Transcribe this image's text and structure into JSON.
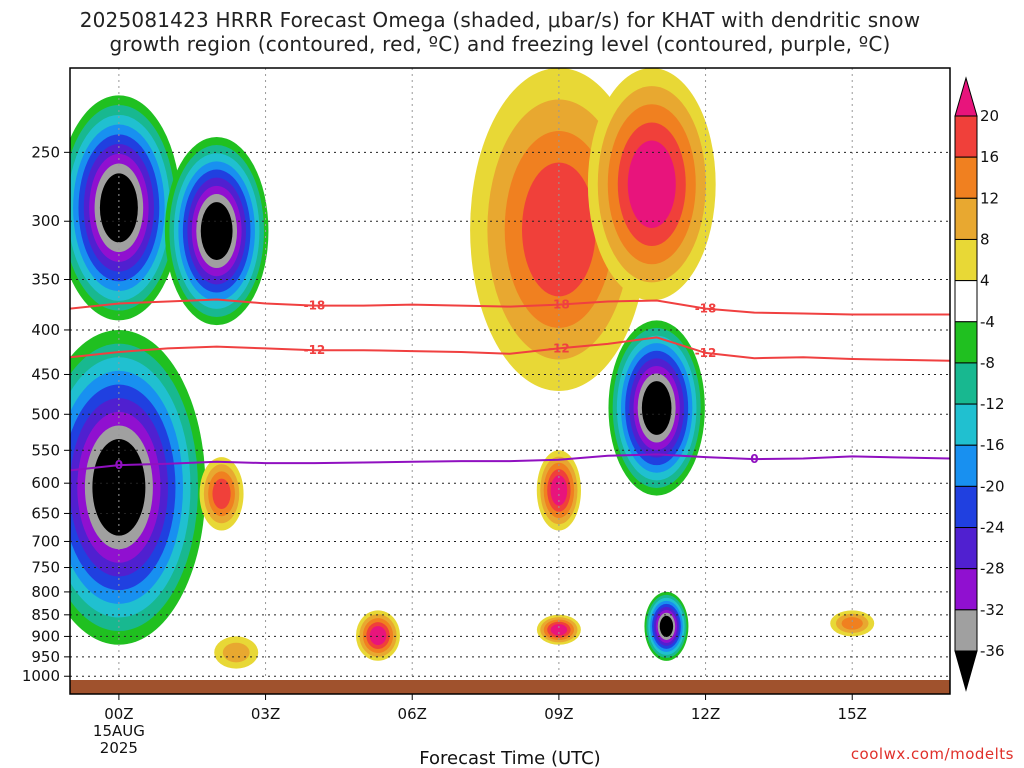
{
  "title": {
    "line1": "2025081423 HRRR Forecast Omega (shaded, μbar/s) for KHAT with dendritic snow",
    "line2": "growth region (contoured, red, ºC) and freezing level (contoured, purple, ºC)"
  },
  "credit": "coolwx.com/modelts",
  "chart_data": {
    "type": "heatmap",
    "xlabel": "Forecast Time (UTC)",
    "ylabel": "",
    "x_ticks": [
      {
        "hour": 0,
        "label": "00Z",
        "sublabels": [
          "15AUG",
          "2025"
        ]
      },
      {
        "hour": 3,
        "label": "03Z",
        "sublabels": []
      },
      {
        "hour": 6,
        "label": "06Z",
        "sublabels": []
      },
      {
        "hour": 9,
        "label": "09Z",
        "sublabels": []
      },
      {
        "hour": 12,
        "label": "12Z",
        "sublabels": []
      },
      {
        "hour": 15,
        "label": "15Z",
        "sublabels": []
      }
    ],
    "xlim_hours": [
      -1,
      17
    ],
    "y_ticks": [
      250,
      300,
      350,
      400,
      450,
      500,
      550,
      600,
      650,
      700,
      750,
      800,
      850,
      900,
      950,
      1000
    ],
    "ylim_mb": [
      200,
      1010
    ],
    "y_scale": "log-pressure",
    "grid": true,
    "colorbar": {
      "unit": "μbar/s",
      "labels": [
        "20",
        "16",
        "12",
        "8",
        "4",
        "-4",
        "-8",
        "-12",
        "-16",
        "-20",
        "-24",
        "-28",
        "-32",
        "-36"
      ],
      "colors": [
        "#e8147c",
        "#f0403a",
        "#f08020",
        "#e8a830",
        "#e8d836",
        "#ffffff",
        "#20c020",
        "#18b890",
        "#20c0d0",
        "#1890f0",
        "#2040e0",
        "#5020d0",
        "#9010d0",
        "#a0a0a0",
        "#000000"
      ]
    },
    "contours": [
      {
        "name": "-18",
        "color": "#f04040",
        "points": [
          [
            -1,
            378
          ],
          [
            0,
            373
          ],
          [
            1,
            371
          ],
          [
            2,
            369
          ],
          [
            3,
            373
          ],
          [
            4,
            375
          ],
          [
            5,
            375
          ],
          [
            6,
            374
          ],
          [
            7,
            375
          ],
          [
            8,
            376
          ],
          [
            9,
            374
          ],
          [
            10,
            371
          ],
          [
            11,
            370
          ],
          [
            12,
            378
          ],
          [
            13,
            382
          ],
          [
            14,
            383
          ],
          [
            15,
            384
          ],
          [
            17,
            384
          ]
        ]
      },
      {
        "name": "-12",
        "color": "#f04040",
        "points": [
          [
            -1,
            430
          ],
          [
            0,
            424
          ],
          [
            1,
            420
          ],
          [
            2,
            418
          ],
          [
            3,
            420
          ],
          [
            4,
            422
          ],
          [
            5,
            422
          ],
          [
            6,
            423
          ],
          [
            7,
            424
          ],
          [
            8,
            426
          ],
          [
            9,
            420
          ],
          [
            10,
            415
          ],
          [
            11,
            408
          ],
          [
            12,
            425
          ],
          [
            13,
            431
          ],
          [
            14,
            430
          ],
          [
            15,
            432
          ],
          [
            17,
            434
          ]
        ]
      },
      {
        "name": "0",
        "color": "#9010c0",
        "points": [
          [
            -1,
            580
          ],
          [
            0,
            572
          ],
          [
            1,
            570
          ],
          [
            2,
            567
          ],
          [
            3,
            569
          ],
          [
            4,
            569
          ],
          [
            5,
            568
          ],
          [
            6,
            567
          ],
          [
            7,
            566
          ],
          [
            8,
            566
          ],
          [
            9,
            564
          ],
          [
            10,
            558
          ],
          [
            11,
            556
          ],
          [
            12,
            560
          ],
          [
            13,
            563
          ],
          [
            14,
            562
          ],
          [
            15,
            559
          ],
          [
            17,
            562
          ]
        ]
      }
    ],
    "omega_features": [
      {
        "hour": 0.0,
        "top_mb": 215,
        "bottom_mb": 390,
        "peak": -36
      },
      {
        "hour": 0.0,
        "top_mb": 400,
        "bottom_mb": 920,
        "peak": -36
      },
      {
        "hour": 2.0,
        "top_mb": 240,
        "bottom_mb": 395,
        "peak": -36
      },
      {
        "hour": 2.1,
        "top_mb": 560,
        "bottom_mb": 680,
        "peak": 16
      },
      {
        "hour": 2.4,
        "top_mb": 900,
        "bottom_mb": 980,
        "peak": 8
      },
      {
        "hour": 5.3,
        "top_mb": 840,
        "bottom_mb": 960,
        "peak": 20
      },
      {
        "hour": 9.0,
        "top_mb": 200,
        "bottom_mb": 470,
        "peak": 16
      },
      {
        "hour": 9.0,
        "top_mb": 550,
        "bottom_mb": 680,
        "peak": 20
      },
      {
        "hour": 9.0,
        "top_mb": 850,
        "bottom_mb": 920,
        "peak": 20
      },
      {
        "hour": 10.9,
        "top_mb": 200,
        "bottom_mb": 370,
        "peak": 20
      },
      {
        "hour": 11.0,
        "top_mb": 390,
        "bottom_mb": 620,
        "peak": -36
      },
      {
        "hour": 11.2,
        "top_mb": 800,
        "bottom_mb": 960,
        "peak": -36
      },
      {
        "hour": 15.0,
        "top_mb": 840,
        "bottom_mb": 900,
        "peak": 12
      }
    ]
  }
}
